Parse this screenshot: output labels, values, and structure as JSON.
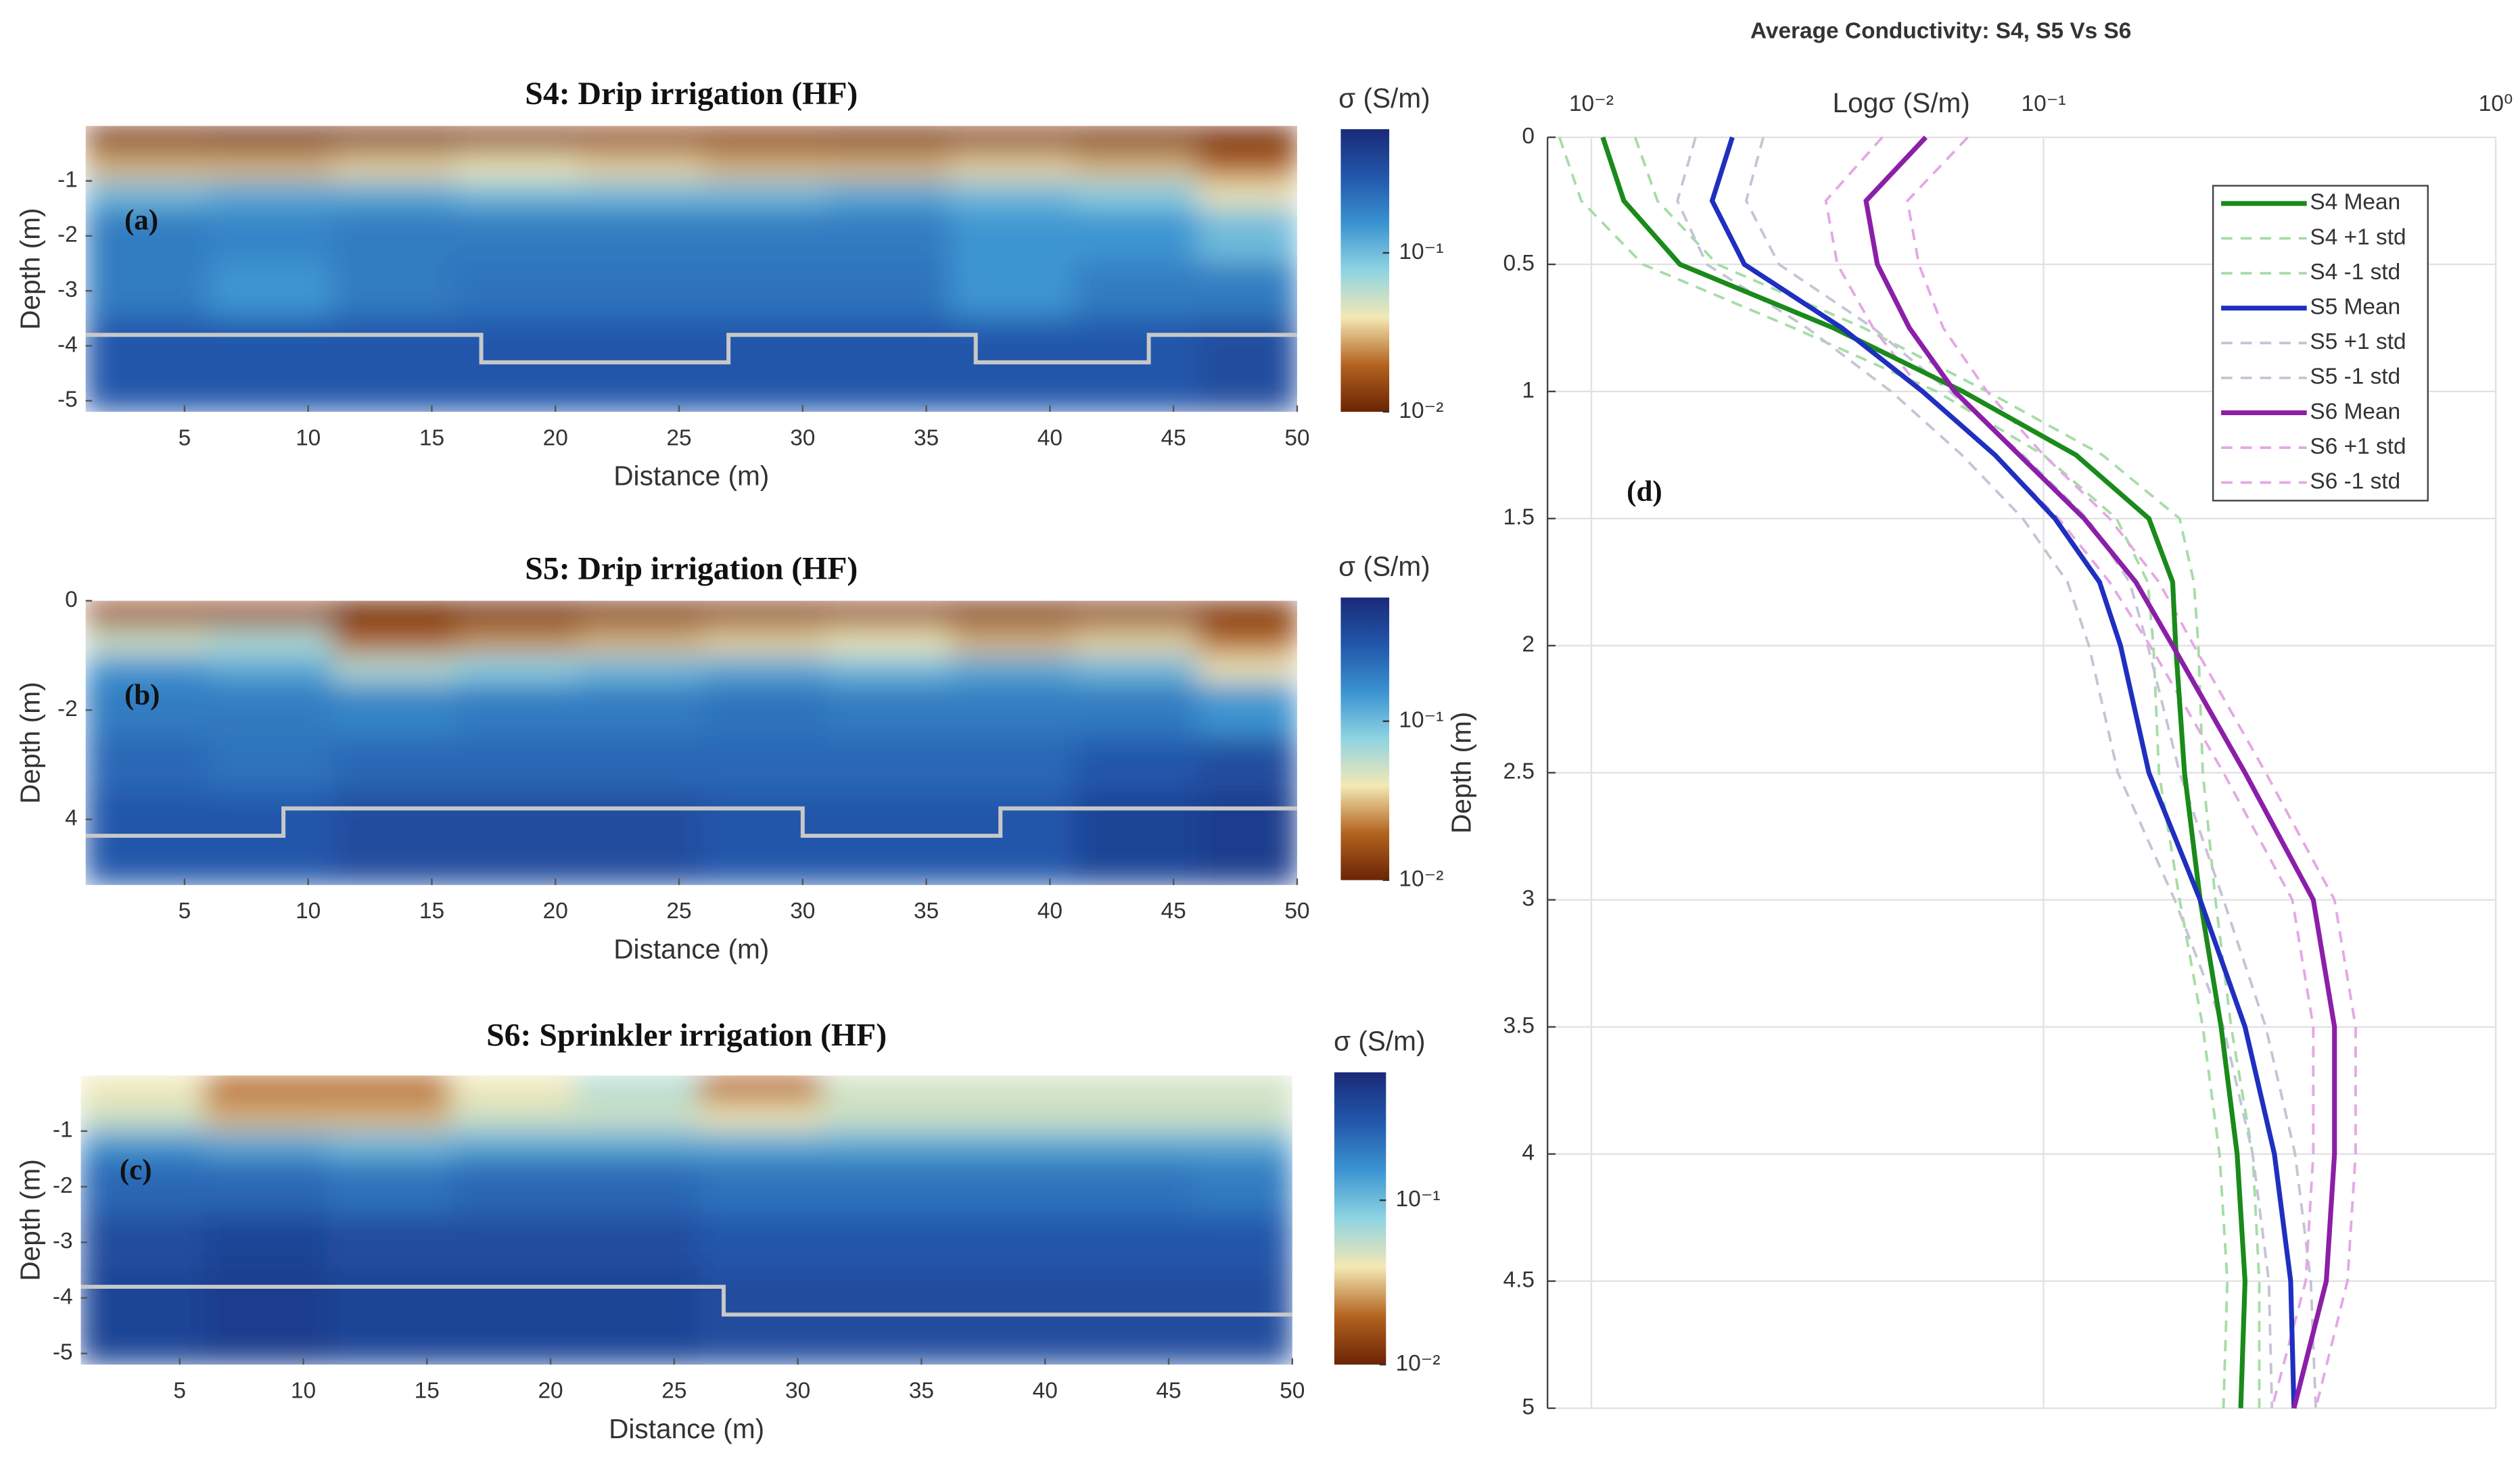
{
  "chart_data": [
    {
      "type": "heatmap",
      "title": "S4: Drip irrigation (HF)",
      "annotation": "(a)",
      "xlabel": "Distance (m)",
      "ylabel": "Depth (m)",
      "colorbar_label": "σ (S/m)",
      "x_edges": [
        1,
        6,
        11,
        16,
        21,
        26,
        31,
        36,
        41,
        46,
        50
      ],
      "y_edges": [
        0,
        -0.5,
        -1,
        -1.5,
        -2.5,
        -3.5,
        -5.2
      ],
      "z": [
        [
          0.012,
          0.011,
          0.012,
          0.013,
          0.014,
          0.013,
          0.012,
          0.013,
          0.012,
          0.011
        ],
        [
          0.03,
          0.03,
          0.035,
          0.04,
          0.035,
          0.03,
          0.03,
          0.035,
          0.03,
          0.02
        ],
        [
          0.1,
          0.12,
          0.12,
          0.1,
          0.1,
          0.1,
          0.12,
          0.1,
          0.08,
          0.04
        ],
        [
          0.2,
          0.18,
          0.2,
          0.2,
          0.2,
          0.2,
          0.2,
          0.15,
          0.15,
          0.1
        ],
        [
          0.2,
          0.15,
          0.2,
          0.22,
          0.22,
          0.22,
          0.22,
          0.15,
          0.2,
          0.2
        ],
        [
          0.3,
          0.3,
          0.3,
          0.3,
          0.3,
          0.3,
          0.3,
          0.3,
          0.3,
          0.35
        ]
      ],
      "xlim": [
        1,
        50
      ],
      "ylim": [
        -5.2,
        0
      ],
      "xticks": [
        5,
        10,
        15,
        20,
        25,
        30,
        35,
        40,
        45,
        50
      ],
      "yticks": [
        -1,
        -2,
        -3,
        -4,
        -5
      ],
      "clim": [
        0.01,
        0.6
      ],
      "colorscale": "log",
      "cticks": [
        {
          "value": 0.1,
          "label": "10⁻¹"
        },
        {
          "value": 0.01,
          "label": "10⁻²"
        }
      ],
      "colormap": [
        "#6b2305",
        "#b3641f",
        "#f3e8b4",
        "#8fd4e2",
        "#3a93d0",
        "#2256aa",
        "#1a2a78"
      ],
      "boundary": {
        "color": "#c8c8c8",
        "x": [
          1,
          17,
          17,
          27,
          27,
          37,
          37,
          44,
          44,
          50
        ],
        "y": [
          -3.8,
          -3.8,
          -4.3,
          -4.3,
          -3.8,
          -3.8,
          -4.3,
          -4.3,
          -3.8,
          -3.8
        ]
      }
    },
    {
      "type": "heatmap",
      "title": "S5: Drip irrigation (HF)",
      "annotation": "(b)",
      "xlabel": "Distance (m)",
      "ylabel": "Depth (m)",
      "colorbar_label": "σ (S/m)",
      "x_edges": [
        1,
        6,
        11,
        16,
        21,
        26,
        31,
        36,
        41,
        46,
        50
      ],
      "y_edges": [
        0,
        -0.5,
        -1,
        -1.5,
        -2.5,
        -3.5,
        -5.2
      ],
      "z": [
        [
          0.015,
          0.015,
          0.01,
          0.011,
          0.012,
          0.013,
          0.014,
          0.012,
          0.013,
          0.012
        ],
        [
          0.05,
          0.06,
          0.02,
          0.025,
          0.03,
          0.035,
          0.04,
          0.03,
          0.035,
          0.02
        ],
        [
          0.15,
          0.12,
          0.06,
          0.08,
          0.1,
          0.12,
          0.1,
          0.12,
          0.1,
          0.04
        ],
        [
          0.2,
          0.2,
          0.18,
          0.2,
          0.2,
          0.22,
          0.2,
          0.2,
          0.2,
          0.15
        ],
        [
          0.25,
          0.22,
          0.25,
          0.25,
          0.25,
          0.25,
          0.25,
          0.25,
          0.3,
          0.35
        ],
        [
          0.3,
          0.3,
          0.35,
          0.35,
          0.35,
          0.3,
          0.3,
          0.3,
          0.4,
          0.45
        ]
      ],
      "xlim": [
        1,
        50
      ],
      "ylim": [
        -5.2,
        0
      ],
      "xticks": [
        5,
        10,
        15,
        20,
        25,
        30,
        35,
        40,
        45,
        50
      ],
      "yticks": [
        0,
        -2,
        {
          "value": -4,
          "label": "4"
        }
      ],
      "clim": [
        0.01,
        0.6
      ],
      "colorscale": "log",
      "cticks": [
        {
          "value": 0.1,
          "label": "10⁻¹"
        },
        {
          "value": 0.01,
          "label": "10⁻²"
        }
      ],
      "colormap": [
        "#6b2305",
        "#b3641f",
        "#f3e8b4",
        "#8fd4e2",
        "#3a93d0",
        "#2256aa",
        "#1a2a78"
      ],
      "boundary": {
        "color": "#c8c8c8",
        "x": [
          1,
          9,
          9,
          30,
          30,
          38,
          38,
          50
        ],
        "y": [
          -4.3,
          -4.3,
          -3.8,
          -3.8,
          -4.3,
          -4.3,
          -3.8,
          -3.8
        ]
      }
    },
    {
      "type": "heatmap",
      "title": "S6: Sprinkler irrigation (HF)",
      "annotation": "(c)",
      "xlabel": "Distance (m)",
      "ylabel": "Depth (m)",
      "colorbar_label": "σ (S/m)",
      "x_edges": [
        1,
        6,
        11,
        16,
        21,
        26,
        31,
        36,
        41,
        46,
        50
      ],
      "y_edges": [
        0,
        -0.5,
        -1,
        -1.5,
        -2.5,
        -3.5,
        -5.2
      ],
      "z": [
        [
          0.04,
          0.02,
          0.02,
          0.04,
          0.06,
          0.02,
          0.05,
          0.05,
          0.05,
          0.05
        ],
        [
          0.05,
          0.03,
          0.03,
          0.05,
          0.05,
          0.04,
          0.05,
          0.05,
          0.05,
          0.05
        ],
        [
          0.15,
          0.12,
          0.1,
          0.12,
          0.12,
          0.12,
          0.12,
          0.12,
          0.12,
          0.12
        ],
        [
          0.25,
          0.25,
          0.22,
          0.25,
          0.25,
          0.22,
          0.22,
          0.22,
          0.22,
          0.2
        ],
        [
          0.35,
          0.4,
          0.35,
          0.35,
          0.35,
          0.3,
          0.3,
          0.3,
          0.3,
          0.3
        ],
        [
          0.4,
          0.45,
          0.4,
          0.4,
          0.4,
          0.35,
          0.35,
          0.35,
          0.35,
          0.35
        ]
      ],
      "xlim": [
        1,
        50
      ],
      "ylim": [
        -5.2,
        0
      ],
      "xticks": [
        5,
        10,
        15,
        20,
        25,
        30,
        35,
        40,
        45,
        50
      ],
      "yticks": [
        -1,
        -2,
        -3,
        -4,
        -5
      ],
      "clim": [
        0.01,
        0.6
      ],
      "colorscale": "log",
      "cticks": [
        {
          "value": 0.1,
          "label": "10⁻¹"
        },
        {
          "value": 0.01,
          "label": "10⁻²"
        }
      ],
      "colormap": [
        "#6b2305",
        "#b3641f",
        "#f3e8b4",
        "#8fd4e2",
        "#3a93d0",
        "#2256aa",
        "#1a2a78"
      ],
      "boundary": {
        "color": "#c8c8c8",
        "x": [
          1,
          27,
          27,
          50
        ],
        "y": [
          -3.8,
          -3.8,
          -4.3,
          -4.3
        ]
      }
    },
    {
      "type": "line",
      "title": "Average Conductivity: S4, S5 Vs S6",
      "annotation": "(d)",
      "xlabel": "Logσ (S/m)",
      "ylabel": "Depth (m)",
      "xscale": "log",
      "xlim": [
        0.008,
        1
      ],
      "ylim": [
        0,
        5
      ],
      "yreversed": true,
      "grid": true,
      "legend": "upper right",
      "xticks": [
        {
          "value": 0.01,
          "label": "10⁻²"
        },
        {
          "value": 0.1,
          "label": "10⁻¹"
        },
        {
          "value": 1,
          "label": "10⁰"
        }
      ],
      "yticks": [
        0,
        0.5,
        1,
        1.5,
        2,
        2.5,
        3,
        3.5,
        4,
        4.5,
        5
      ],
      "y": [
        0,
        0.25,
        0.5,
        0.75,
        1,
        1.25,
        1.5,
        1.75,
        2,
        2.5,
        3,
        3.5,
        4,
        4.5,
        5
      ],
      "series": [
        {
          "name": "S4 Mean",
          "color": "#1a8a1a",
          "linestyle": "-",
          "values": [
            0.0106,
            0.0118,
            0.0157,
            0.0343,
            0.0663,
            0.118,
            0.171,
            0.193,
            0.196,
            0.205,
            0.222,
            0.247,
            0.268,
            0.279,
            0.273
          ]
        },
        {
          "name": "S4 +1 std",
          "color": "#a6dca6",
          "linestyle": "--",
          "values": [
            0.0125,
            0.014,
            0.019,
            0.04,
            0.075,
            0.135,
            0.2,
            0.215,
            0.22,
            0.225,
            0.24,
            0.26,
            0.29,
            0.3,
            0.3
          ]
        },
        {
          "name": "S4 -1 std",
          "color": "#a6dca6",
          "linestyle": "--",
          "values": [
            0.0085,
            0.0095,
            0.013,
            0.028,
            0.058,
            0.1,
            0.145,
            0.17,
            0.175,
            0.18,
            0.2,
            0.225,
            0.245,
            0.255,
            0.25
          ]
        },
        {
          "name": "S5 Mean",
          "color": "#1f2fbf",
          "linestyle": "-",
          "values": [
            0.0205,
            0.0185,
            0.0218,
            0.0358,
            0.054,
            0.0781,
            0.106,
            0.133,
            0.148,
            0.171,
            0.222,
            0.279,
            0.324,
            0.352,
            0.358
          ]
        },
        {
          "name": "S5 +1 std",
          "color": "#c4c4d6",
          "linestyle": "--",
          "values": [
            0.024,
            0.022,
            0.026,
            0.042,
            0.062,
            0.09,
            0.125,
            0.155,
            0.17,
            0.2,
            0.25,
            0.31,
            0.36,
            0.39,
            0.4
          ]
        },
        {
          "name": "S5 -1 std",
          "color": "#c4c4d6",
          "linestyle": "--",
          "values": [
            0.017,
            0.0155,
            0.018,
            0.03,
            0.046,
            0.066,
            0.09,
            0.113,
            0.126,
            0.146,
            0.195,
            0.25,
            0.29,
            0.315,
            0.32
          ]
        },
        {
          "name": "S6 Mean",
          "color": "#8b1fa8",
          "linestyle": "-",
          "values": [
            0.0549,
            0.0405,
            0.0429,
            0.0505,
            0.0636,
            0.0884,
            0.123,
            0.16,
            0.193,
            0.279,
            0.395,
            0.44,
            0.44,
            0.422,
            0.358
          ]
        },
        {
          "name": "S6 +1 std",
          "color": "#e4a8e4",
          "linestyle": "--",
          "values": [
            0.068,
            0.05,
            0.053,
            0.06,
            0.075,
            0.1,
            0.14,
            0.18,
            0.215,
            0.31,
            0.44,
            0.49,
            0.49,
            0.47,
            0.4
          ]
        },
        {
          "name": "S6 -1 std",
          "color": "#e4a8e4",
          "linestyle": "--",
          "values": [
            0.044,
            0.033,
            0.035,
            0.042,
            0.054,
            0.078,
            0.108,
            0.14,
            0.172,
            0.25,
            0.355,
            0.395,
            0.395,
            0.38,
            0.32
          ]
        }
      ]
    }
  ]
}
